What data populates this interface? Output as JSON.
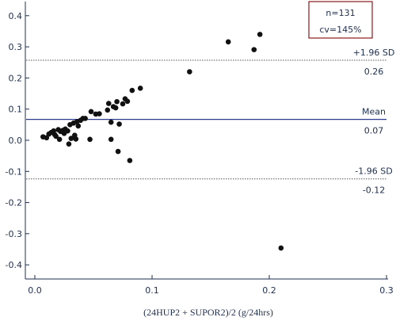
{
  "chart_data": {
    "type": "scatter",
    "title": "",
    "xlabel": "(24HUP2 + SUPOR2)/2 (g/24hrs)",
    "ylabel": "",
    "xlim": [
      0,
      0.3
    ],
    "ylim": [
      -0.42,
      0.43
    ],
    "x_ticks": [
      0,
      0.1,
      0.2,
      0.3
    ],
    "x_tick_labels": [
      "0.0",
      "0.1",
      "0.2",
      "0.3"
    ],
    "y_ticks": [
      -0.4,
      -0.3,
      -0.2,
      -0.1,
      0,
      0.1,
      0.2,
      0.3,
      0.4
    ],
    "y_tick_labels": [
      "-0.4",
      "-0.3",
      "-0.2",
      "-0.1",
      "0.0",
      "0.1",
      "0.2",
      "0.3",
      "0.4"
    ],
    "grid": false,
    "points": [
      {
        "x": 0.007,
        "y": 0.011
      },
      {
        "x": 0.01,
        "y": 0.008
      },
      {
        "x": 0.012,
        "y": 0.02
      },
      {
        "x": 0.014,
        "y": 0.025
      },
      {
        "x": 0.016,
        "y": 0.03
      },
      {
        "x": 0.017,
        "y": 0.018
      },
      {
        "x": 0.018,
        "y": 0.013
      },
      {
        "x": 0.02,
        "y": 0.034
      },
      {
        "x": 0.021,
        "y": 0.003
      },
      {
        "x": 0.022,
        "y": 0.028
      },
      {
        "x": 0.024,
        "y": 0.032
      },
      {
        "x": 0.025,
        "y": 0.022
      },
      {
        "x": 0.026,
        "y": 0.036
      },
      {
        "x": 0.028,
        "y": 0.03
      },
      {
        "x": 0.029,
        "y": -0.012
      },
      {
        "x": 0.03,
        "y": 0.05
      },
      {
        "x": 0.031,
        "y": 0.006
      },
      {
        "x": 0.033,
        "y": 0.055
      },
      {
        "x": 0.034,
        "y": 0.016
      },
      {
        "x": 0.035,
        "y": 0.004
      },
      {
        "x": 0.036,
        "y": 0.06
      },
      {
        "x": 0.037,
        "y": 0.046
      },
      {
        "x": 0.039,
        "y": 0.064
      },
      {
        "x": 0.041,
        "y": 0.07
      },
      {
        "x": 0.043,
        "y": 0.07
      },
      {
        "x": 0.047,
        "y": 0.003
      },
      {
        "x": 0.048,
        "y": 0.092
      },
      {
        "x": 0.052,
        "y": 0.084
      },
      {
        "x": 0.055,
        "y": 0.085
      },
      {
        "x": 0.062,
        "y": 0.097
      },
      {
        "x": 0.063,
        "y": 0.118
      },
      {
        "x": 0.065,
        "y": 0.058
      },
      {
        "x": 0.065,
        "y": 0.003
      },
      {
        "x": 0.067,
        "y": 0.108
      },
      {
        "x": 0.069,
        "y": 0.104
      },
      {
        "x": 0.07,
        "y": 0.124
      },
      {
        "x": 0.071,
        "y": -0.036
      },
      {
        "x": 0.072,
        "y": 0.052
      },
      {
        "x": 0.075,
        "y": 0.117
      },
      {
        "x": 0.077,
        "y": 0.133
      },
      {
        "x": 0.079,
        "y": 0.125
      },
      {
        "x": 0.081,
        "y": -0.065
      },
      {
        "x": 0.083,
        "y": 0.16
      },
      {
        "x": 0.09,
        "y": 0.167
      },
      {
        "x": 0.132,
        "y": 0.22
      },
      {
        "x": 0.165,
        "y": 0.316
      },
      {
        "x": 0.187,
        "y": 0.291
      },
      {
        "x": 0.192,
        "y": 0.34
      },
      {
        "x": 0.21,
        "y": -0.346
      }
    ],
    "reference_lines": [
      {
        "name": "upper",
        "y": 0.257,
        "style": "dotted",
        "label": "+1.96 SD",
        "value_label": "0.26"
      },
      {
        "name": "mean",
        "y": 0.067,
        "style": "solid",
        "label": "Mean",
        "value_label": "0.07"
      },
      {
        "name": "lower",
        "y": -0.124,
        "style": "dotted",
        "label": "-1.96 SD",
        "value_label": "-0.12"
      }
    ],
    "stats": [
      "n=131",
      "cv=145%"
    ],
    "colors": {
      "axis": "#1f2f4f",
      "points": "#111111",
      "mean_line": "#2e3a8c",
      "sd_line": "#555555",
      "stats_border": "#8b1a1a"
    }
  }
}
